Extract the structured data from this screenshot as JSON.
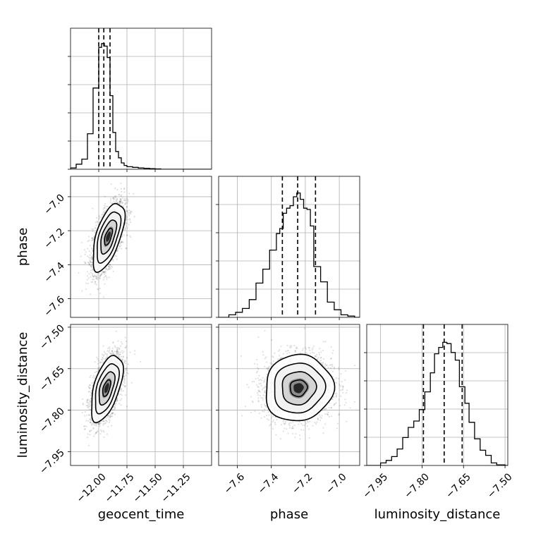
{
  "chart_data": {
    "type": "corner",
    "parameters": [
      "geocent_time",
      "phase",
      "luminosity_distance"
    ],
    "ranges": {
      "geocent_time": [
        -12.25,
        -11.0
      ],
      "phase": [
        -7.71,
        -6.88
      ],
      "luminosity_distance": [
        -8.0,
        -7.49
      ]
    },
    "ticks": {
      "geocent_time": {
        "values": [
          -12.0,
          -11.75,
          -11.5,
          -11.25
        ],
        "labels": [
          "−12.00",
          "−11.75",
          "−11.50",
          "−11.25"
        ]
      },
      "phase": {
        "values": [
          -7.6,
          -7.4,
          -7.2,
          -7.0
        ],
        "labels": [
          "−7.6",
          "−7.4",
          "−7.2",
          "−7.0"
        ]
      },
      "luminosity_distance": {
        "values": [
          -7.95,
          -7.8,
          -7.65,
          -7.5
        ],
        "labels": [
          "−7.95",
          "−7.80",
          "−7.65",
          "−7.50"
        ]
      }
    },
    "quantiles": {
      "geocent_time": [
        -12.0,
        -11.955,
        -11.9
      ],
      "phase": [
        -7.335,
        -7.245,
        -7.14
      ],
      "luminosity_distance": [
        -7.795,
        -7.72,
        -7.655
      ]
    },
    "histograms": {
      "geocent_time": {
        "edges": [
          -12.25,
          -12.2,
          -12.15,
          -12.1,
          -12.05,
          -12.0,
          -11.975,
          -11.95,
          -11.925,
          -11.9,
          -11.875,
          -11.85,
          -11.825,
          -11.8,
          -11.775,
          -11.75,
          -11.7,
          -11.65,
          -11.6,
          -11.55,
          -11.5,
          -11.45,
          -11.0
        ],
        "counts": [
          0.01,
          0.04,
          0.08,
          0.28,
          0.64,
          0.96,
          0.99,
          0.97,
          0.88,
          0.58,
          0.29,
          0.14,
          0.09,
          0.05,
          0.03,
          0.02,
          0.015,
          0.01,
          0.007,
          0.005,
          0.003,
          0.0
        ]
      },
      "phase": {
        "edges": [
          -7.71,
          -7.65,
          -7.61,
          -7.57,
          -7.53,
          -7.49,
          -7.45,
          -7.41,
          -7.37,
          -7.35,
          -7.33,
          -7.31,
          -7.29,
          -7.27,
          -7.25,
          -7.23,
          -7.21,
          -7.19,
          -7.17,
          -7.15,
          -7.11,
          -7.07,
          -7.03,
          -6.99,
          -6.95,
          -6.91,
          -6.88
        ],
        "counts": [
          0.0,
          0.02,
          0.04,
          0.07,
          0.14,
          0.27,
          0.38,
          0.53,
          0.66,
          0.7,
          0.82,
          0.86,
          0.88,
          0.95,
          0.98,
          0.93,
          0.86,
          0.85,
          0.72,
          0.4,
          0.28,
          0.12,
          0.06,
          0.02,
          0.01,
          0.0
        ]
      },
      "luminosity_distance": {
        "edges": [
          -8.0,
          -7.95,
          -7.93,
          -7.91,
          -7.89,
          -7.87,
          -7.85,
          -7.83,
          -7.81,
          -7.79,
          -7.77,
          -7.755,
          -7.74,
          -7.725,
          -7.71,
          -7.695,
          -7.68,
          -7.665,
          -7.645,
          -7.63,
          -7.61,
          -7.59,
          -7.57,
          -7.55,
          -7.53,
          -7.5,
          -7.49
        ],
        "counts": [
          0.0,
          0.02,
          0.04,
          0.07,
          0.13,
          0.22,
          0.3,
          0.35,
          0.44,
          0.58,
          0.73,
          0.88,
          0.93,
          0.97,
          0.96,
          0.89,
          0.83,
          0.62,
          0.49,
          0.34,
          0.21,
          0.12,
          0.08,
          0.02,
          0.005,
          0.0
        ]
      }
    },
    "joint": [
      {
        "x": "geocent_time",
        "y": "phase",
        "center": [
          -11.915,
          -7.235
        ],
        "sigma": [
          0.07,
          0.1
        ],
        "correlation": 0.6,
        "contour_levels": [
          0.5,
          1.0,
          1.5,
          2.0
        ]
      },
      {
        "x": "geocent_time",
        "y": "luminosity_distance",
        "center": [
          -11.93,
          -7.72
        ],
        "sigma": [
          0.07,
          0.06
        ],
        "correlation": 0.55,
        "contour_levels": [
          0.5,
          1.0,
          1.5,
          2.0
        ]
      },
      {
        "x": "phase",
        "y": "luminosity_distance",
        "center": [
          -7.24,
          -7.72
        ],
        "sigma": [
          0.1,
          0.06
        ],
        "correlation": 0.05,
        "contour_levels": [
          0.5,
          1.0,
          1.5,
          2.0
        ]
      }
    ],
    "grid": true,
    "style": {
      "line_color": "#000000",
      "grid_color": "#b0b0b0",
      "scatter_color": "#000000",
      "background": "#ffffff"
    }
  }
}
